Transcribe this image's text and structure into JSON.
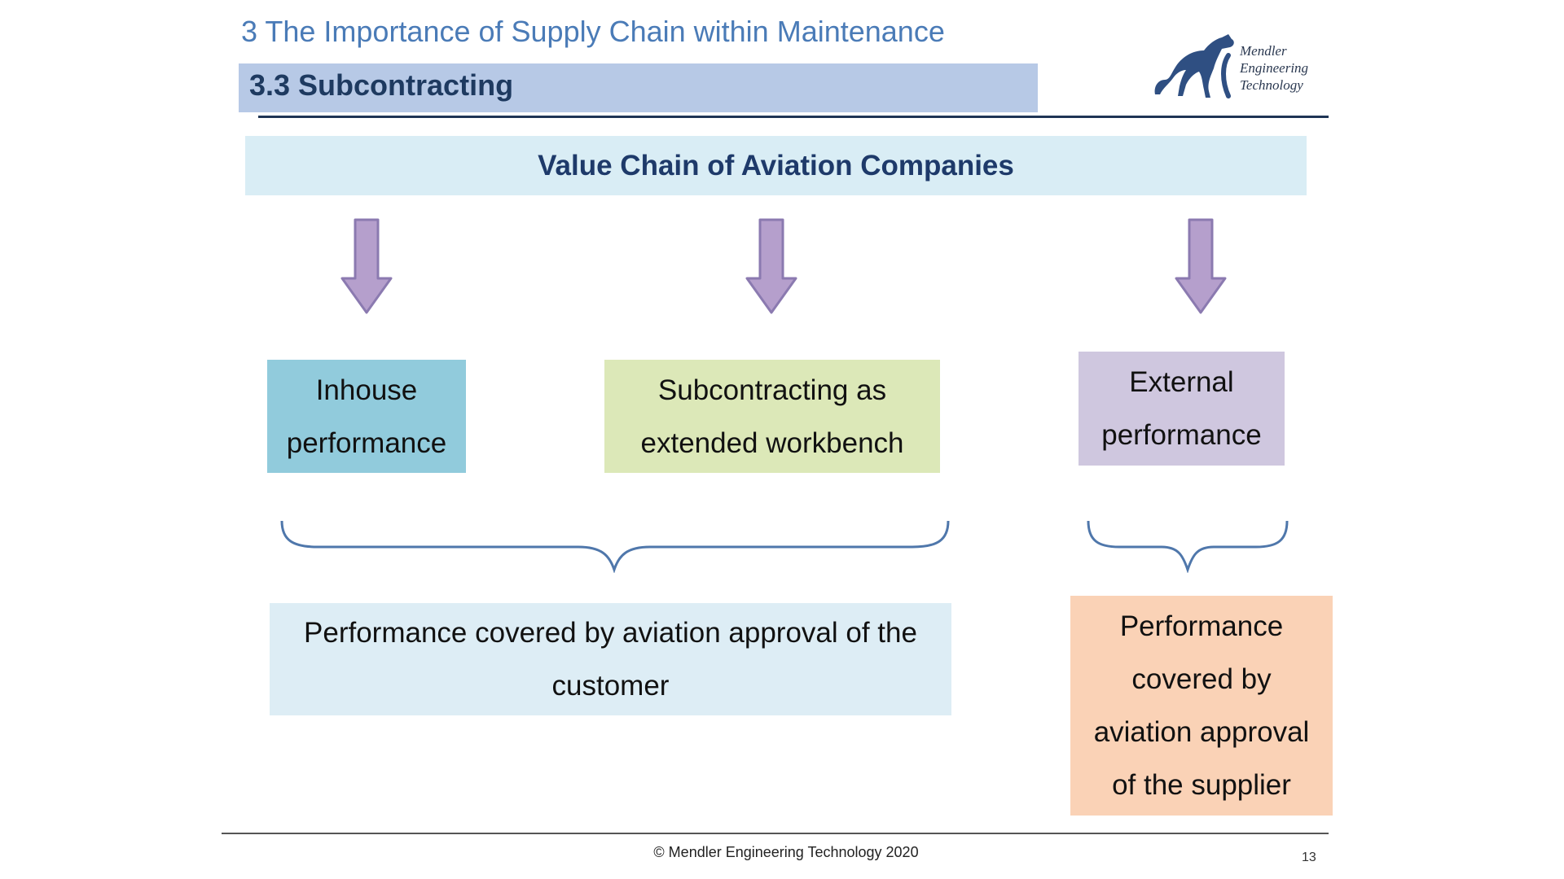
{
  "header": {
    "chapter_title": "3 The Importance of Supply Chain within Maintenance",
    "section_title": "3.3  Subcontracting"
  },
  "logo": {
    "line1": "Mendler",
    "line2": "Engineering",
    "line3": "Technology",
    "icon": "panther-logo-icon"
  },
  "diagram": {
    "top_box": "Value Chain of Aviation Companies",
    "inhouse": {
      "line1": "Inhouse",
      "line2": "performance"
    },
    "workbench": {
      "line1": "Subcontracting as",
      "line2": "extended workbench"
    },
    "external": {
      "line1": "External",
      "line2": "performance"
    },
    "customer": {
      "line1": "Performance covered by aviation approval of the",
      "line2": "customer"
    },
    "supplier": {
      "line1": "Performance",
      "line2": "covered by",
      "line3": "aviation approval",
      "line4": "of the supplier"
    }
  },
  "footer": {
    "copyright": "© Mendler Engineering Technology 2020",
    "page_number": "13"
  },
  "colors": {
    "title_blue": "#4a7bb7",
    "band_blue": "#b7c9e6",
    "header_fill": "#d9edf5",
    "arrow_fill": "#b59fcc",
    "arrow_stroke": "#8b7ab0",
    "inhouse_fill": "#91cbdc",
    "workbench_fill": "#dce8b8",
    "external_fill": "#cfc7df",
    "customer_fill": "#ddedf5",
    "supplier_fill": "#fad2b6",
    "brace_stroke": "#4f77ab"
  }
}
